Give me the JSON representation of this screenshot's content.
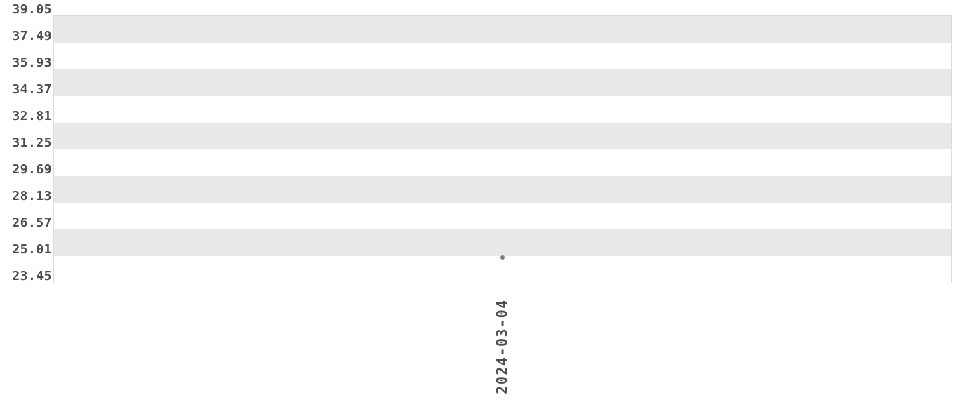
{
  "chart_data": {
    "type": "scatter",
    "title": "",
    "xlabel": "",
    "ylabel": "",
    "categories": [
      "2024-03-04"
    ],
    "series": [
      {
        "name": "",
        "values": [
          24.94
        ]
      }
    ],
    "y_tick_labels": [
      "39.05",
      "37.49",
      "35.93",
      "34.37",
      "32.81",
      "31.25",
      "29.69",
      "28.13",
      "26.57",
      "25.01",
      "23.45"
    ],
    "ylim": [
      23.45,
      39.05
    ],
    "x_tick_labels": [
      "2024-03-04"
    ],
    "grid": "alternating-horizontal-bands",
    "legend_position": "none",
    "colors": {
      "band": "#e9e9e9",
      "plot_border": "#dcdcdc",
      "tick_text": "#4f4f4f",
      "point": "#7b7b7b",
      "background": "#ffffff"
    }
  }
}
